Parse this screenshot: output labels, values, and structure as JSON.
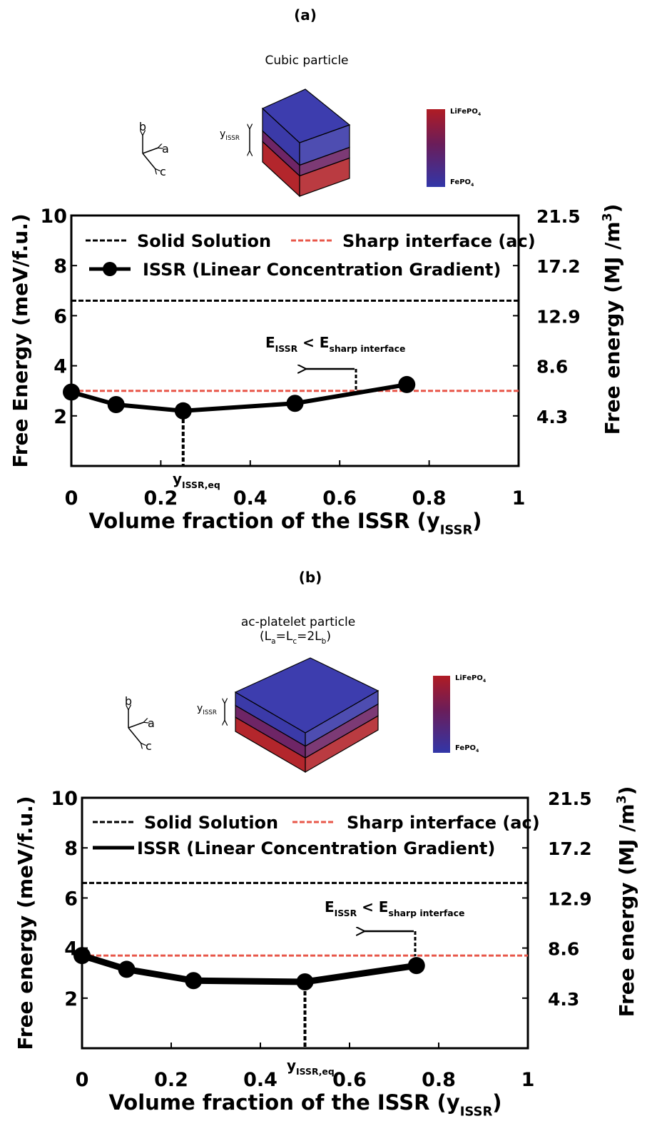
{
  "chart_data": [
    {
      "type": "line",
      "panel": "(a)",
      "schematic": {
        "title": "Cubic particle",
        "axes": [
          "b",
          "a",
          "c"
        ],
        "thickness_label": [
          "y",
          "ISSR"
        ],
        "colorbar": [
          [
            "LiFePO",
            "4"
          ],
          [
            "FePO",
            "4"
          ]
        ]
      },
      "xlabel": [
        "Volume fraction of the ISSR (y",
        "ISSR",
        ")"
      ],
      "ylabel": "Free Energy (meV/f.u.)",
      "y2label": [
        "Free energy (MJ /m",
        "3",
        ")"
      ],
      "xlim": [
        0,
        1
      ],
      "xticks": [
        0,
        0.2,
        0.4,
        0.6,
        0.8,
        1
      ],
      "ylim": [
        0,
        10
      ],
      "yticks": [
        2,
        4,
        6,
        8,
        10
      ],
      "y2lim": [
        0,
        21.5
      ],
      "y2ticks": [
        4.3,
        8.6,
        12.9,
        17.2,
        21.5
      ],
      "hlines": [
        {
          "name": "Solid Solution",
          "value": 6.6,
          "color": "#000000"
        },
        {
          "name": "Sharp interface (ac)",
          "value": 3.0,
          "color": "#e8574a"
        }
      ],
      "series": [
        {
          "name": "ISSR (Linear Concentration Gradient)",
          "color": "#000000",
          "x": [
            0,
            0.1,
            0.25,
            0.5,
            0.75
          ],
          "values": [
            2.95,
            2.45,
            2.2,
            2.5,
            3.25
          ]
        }
      ],
      "legend_marker": true,
      "annotation": [
        "E",
        "ISSR",
        " < E",
        "sharp interface"
      ],
      "equilibrium": {
        "label": [
          "y",
          "ISSR,eq"
        ],
        "x": 0.25
      }
    },
    {
      "type": "line",
      "panel": "(b)",
      "schematic": {
        "title": "ac-platelet particle",
        "subtitle": [
          "(L",
          "a",
          "=L",
          "c",
          "=2L",
          "b",
          ")"
        ],
        "axes": [
          "b",
          "a",
          "c"
        ],
        "thickness_label": [
          "y",
          "ISSR"
        ],
        "colorbar": [
          [
            "LiFePO",
            "4"
          ],
          [
            "FePO",
            "4"
          ]
        ]
      },
      "xlabel": [
        "Volume fraction of the ISSR (y",
        "ISSR",
        ")"
      ],
      "ylabel": "Free energy (meV/f.u.)",
      "y2label": [
        "Free energy (MJ /m",
        "3",
        ")"
      ],
      "xlim": [
        0,
        1
      ],
      "xticks": [
        0,
        0.2,
        0.4,
        0.6,
        0.8,
        1
      ],
      "ylim": [
        0,
        10
      ],
      "yticks": [
        2,
        4,
        6,
        8,
        10
      ],
      "y2lim": [
        0,
        21.5
      ],
      "y2ticks": [
        4.3,
        8.6,
        12.9,
        17.2,
        21.5
      ],
      "hlines": [
        {
          "name": "Solid Solution",
          "value": 6.6,
          "color": "#000000"
        },
        {
          "name": "Sharp interface (ac)",
          "value": 3.7,
          "color": "#e8574a"
        }
      ],
      "series": [
        {
          "name": "ISSR (Linear Concentration Gradient)",
          "color": "#000000",
          "x": [
            0,
            0.1,
            0.25,
            0.5,
            0.75
          ],
          "values": [
            3.7,
            3.15,
            2.7,
            2.65,
            3.3
          ]
        }
      ],
      "legend_marker": false,
      "annotation": [
        "E",
        "ISSR",
        " < E",
        "sharp interface"
      ],
      "equilibrium": {
        "label": [
          "y",
          "ISSR,eq"
        ],
        "x": 0.5
      }
    }
  ]
}
